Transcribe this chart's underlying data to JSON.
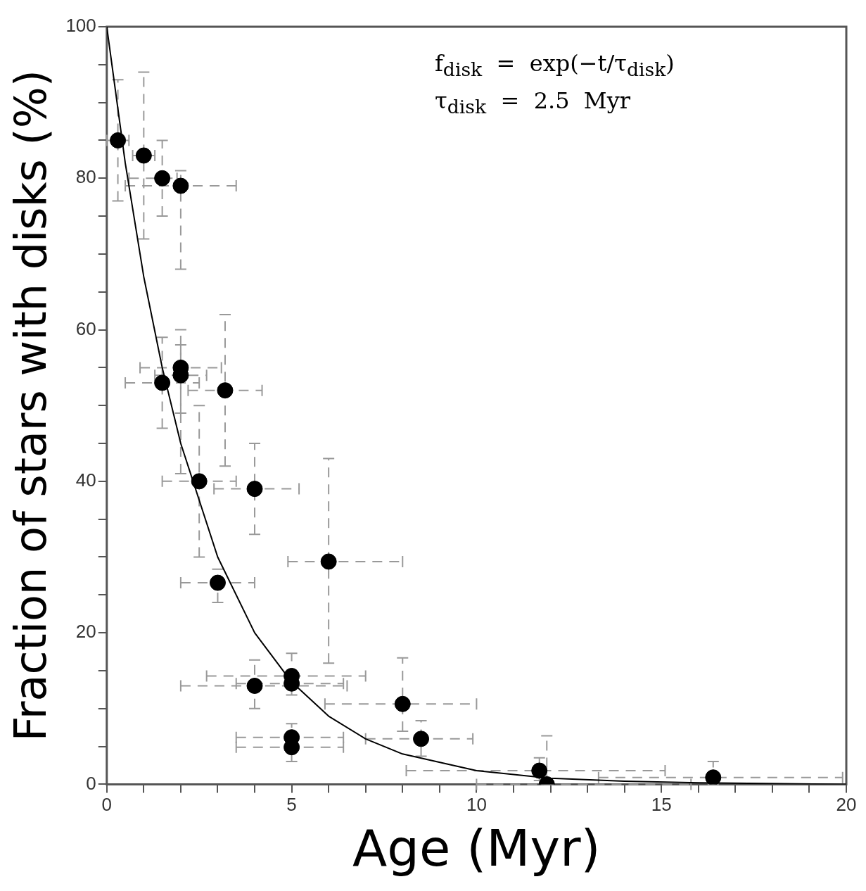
{
  "chart_data": {
    "type": "scatter",
    "xlabel": "Age (Myr)",
    "ylabel": "Fraction of stars with disks (%)",
    "annotations": [
      "f$_{disk}$  =  exp(−t/τ$_{disk}$)",
      "τ$_{disk}$  =  2.5  Myr"
    ],
    "xlim": [
      0,
      20
    ],
    "ylim": [
      0,
      100
    ],
    "xticks": [
      0,
      {
        "value": 1,
        "label": null
      },
      {
        "value": 2,
        "label": null
      },
      {
        "value": 3,
        "label": null
      },
      {
        "value": 4,
        "label": null
      },
      5,
      {
        "value": 6,
        "label": null
      },
      {
        "value": 7,
        "label": null
      },
      {
        "value": 8,
        "label": null
      },
      {
        "value": 9,
        "label": null
      },
      10,
      {
        "value": 11,
        "label": null
      },
      {
        "value": 12,
        "label": null
      },
      {
        "value": 13,
        "label": null
      },
      {
        "value": 14,
        "label": null
      },
      15,
      {
        "value": 16,
        "label": null
      },
      {
        "value": 17,
        "label": null
      },
      {
        "value": 18,
        "label": null
      },
      {
        "value": 19,
        "label": null
      },
      20
    ],
    "yticks": [
      0,
      {
        "value": 5,
        "label": null
      },
      {
        "value": 10,
        "label": null
      },
      {
        "value": 15,
        "label": null
      },
      20,
      {
        "value": 25,
        "label": null
      },
      {
        "value": 30,
        "label": null
      },
      {
        "value": 35,
        "label": null
      },
      40,
      {
        "value": 45,
        "label": null
      },
      {
        "value": 50,
        "label": null
      },
      {
        "value": 55,
        "label": null
      },
      60,
      {
        "value": 65,
        "label": null
      },
      {
        "value": 70,
        "label": null
      },
      {
        "value": 75,
        "label": null
      },
      80,
      {
        "value": 85,
        "label": null
      },
      {
        "value": 90,
        "label": null
      },
      {
        "value": 95,
        "label": null
      },
      100
    ],
    "series": [
      {
        "type": "scatter",
        "color": "#000000",
        "marker": "circle",
        "x": [
          0.3,
          1,
          1.5,
          2,
          1.5,
          2,
          2,
          3.2,
          2.5,
          4,
          6,
          3,
          4,
          5,
          5,
          8,
          8.5,
          5,
          5,
          11.7,
          11.9,
          16.4
        ],
        "values": [
          85,
          83,
          80,
          79,
          53,
          55,
          54,
          52,
          40,
          39,
          29.4,
          26.6,
          13,
          14.3,
          13.3,
          10.6,
          6,
          6.2,
          4.9,
          1.8,
          0,
          0.9
        ],
        "errors": [
          [
            77,
            93
          ],
          [
            72,
            94
          ],
          [
            75,
            85
          ],
          [
            68,
            81
          ],
          [
            47,
            59
          ],
          [
            49,
            60
          ],
          [
            41,
            58
          ],
          [
            42,
            62
          ],
          [
            30,
            50
          ],
          [
            33,
            45
          ],
          [
            16,
            43
          ],
          [
            24,
            28.4
          ],
          [
            10,
            16.4
          ],
          [
            11.8,
            17.3
          ],
          null,
          [
            7,
            16.7
          ],
          [
            3.7,
            8.4
          ],
          [
            3,
            8
          ],
          null,
          [
            0.5,
            3.5
          ],
          [
            0,
            6.4
          ],
          [
            0,
            3
          ]
        ],
        "xerrors": [
          [
            0,
            0.6
          ],
          [
            0.7,
            1.3
          ],
          [
            0.6,
            1.9
          ],
          [
            0.5,
            3.5
          ],
          [
            0.5,
            2.5
          ],
          [
            0.9,
            3.1
          ],
          [
            1.3,
            2.7
          ],
          [
            2.2,
            4.2
          ],
          [
            1.5,
            3.5
          ],
          [
            2.9,
            5.2
          ],
          [
            4.9,
            8
          ],
          [
            2,
            4
          ],
          [
            2,
            6.5
          ],
          [
            2.7,
            7
          ],
          [
            3.5,
            6.4
          ],
          [
            5.9,
            10
          ],
          [
            7,
            9.9
          ],
          [
            3.5,
            6.4
          ],
          [
            3.5,
            6.4
          ],
          [
            8.1,
            15.1
          ],
          [
            10,
            15.8
          ],
          [
            13.3,
            19.9
          ]
        ]
      },
      {
        "type": "line",
        "color": "#000000",
        "marker": "none",
        "line_style": "solid",
        "x": [
          0,
          0.5,
          1,
          1.5,
          2,
          3,
          4,
          5,
          6,
          7,
          8,
          10,
          12,
          14,
          16,
          20
        ],
        "values": [
          100,
          82,
          67,
          55,
          45,
          30,
          20,
          13.5,
          9,
          6,
          4,
          1.8,
          0.8,
          0.4,
          0.2,
          0
        ]
      }
    ]
  }
}
